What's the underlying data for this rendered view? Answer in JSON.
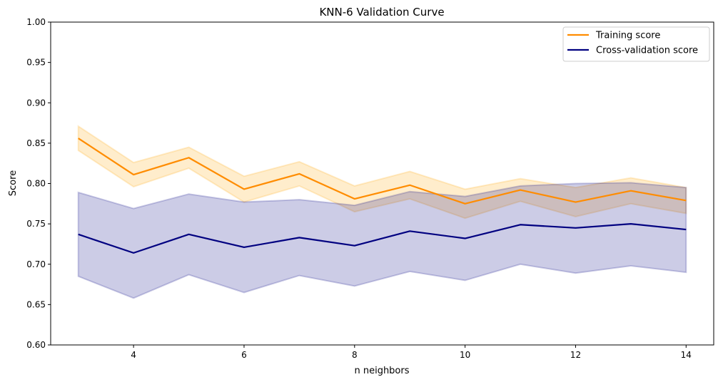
{
  "chart_data": {
    "type": "line",
    "title": "KNN-6 Validation Curve",
    "xlabel": "n neighbors",
    "ylabel": "Score",
    "xlim": [
      2.5,
      14.5
    ],
    "ylim": [
      0.6,
      1.0
    ],
    "xticks": [
      4,
      6,
      8,
      10,
      12,
      14
    ],
    "yticks": [
      0.6,
      0.65,
      0.7,
      0.75,
      0.8,
      0.85,
      0.9,
      0.95,
      1.0
    ],
    "ytick_labels": [
      "0.60",
      "0.65",
      "0.70",
      "0.75",
      "0.80",
      "0.85",
      "0.90",
      "0.95",
      "1.00"
    ],
    "grid": false,
    "legend_position": "top-right",
    "x": [
      3,
      4,
      5,
      6,
      7,
      8,
      9,
      10,
      11,
      12,
      13,
      14
    ],
    "series": [
      {
        "name": "Training score",
        "color": "#ff8c00",
        "band_color": "#ffa500",
        "values": [
          0.856,
          0.811,
          0.832,
          0.793,
          0.812,
          0.781,
          0.798,
          0.775,
          0.792,
          0.777,
          0.791,
          0.779
        ],
        "upper": [
          0.871,
          0.826,
          0.845,
          0.809,
          0.827,
          0.797,
          0.815,
          0.793,
          0.806,
          0.795,
          0.807,
          0.795
        ],
        "lower": [
          0.841,
          0.796,
          0.819,
          0.777,
          0.797,
          0.765,
          0.781,
          0.757,
          0.778,
          0.759,
          0.775,
          0.763
        ]
      },
      {
        "name": "Cross-validation score",
        "color": "#000080",
        "band_color": "#000080",
        "values": [
          0.737,
          0.714,
          0.737,
          0.721,
          0.733,
          0.723,
          0.741,
          0.732,
          0.749,
          0.745,
          0.75,
          0.743
        ],
        "upper": [
          0.789,
          0.769,
          0.787,
          0.777,
          0.78,
          0.773,
          0.79,
          0.784,
          0.797,
          0.8,
          0.801,
          0.795
        ],
        "lower": [
          0.685,
          0.658,
          0.687,
          0.665,
          0.686,
          0.673,
          0.691,
          0.68,
          0.7,
          0.689,
          0.698,
          0.69
        ]
      }
    ]
  }
}
